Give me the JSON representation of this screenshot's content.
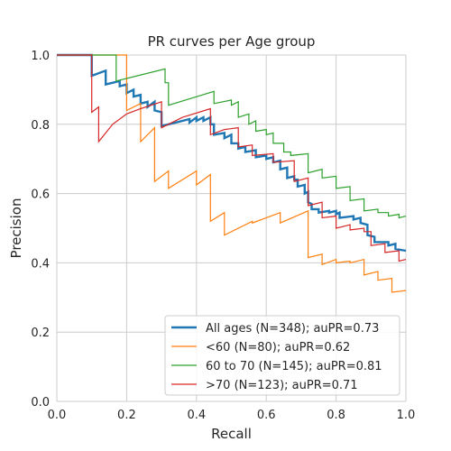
{
  "chart_data": {
    "type": "line",
    "title": "PR curves per Age group",
    "xlabel": "Recall",
    "ylabel": "Precision",
    "xlim": [
      0.0,
      1.0
    ],
    "ylim": [
      0.0,
      1.0
    ],
    "xticks": [
      "0.0",
      "0.2",
      "0.4",
      "0.6",
      "0.8",
      "1.0"
    ],
    "yticks": [
      "0.0",
      "0.2",
      "0.4",
      "0.6",
      "0.8",
      "1.0"
    ],
    "grid": true,
    "legend_position": "lower-right",
    "series": [
      {
        "name": "All ages (N=348); auPR=0.73",
        "color": "#1f77b4",
        "width": 2.4,
        "points": [
          [
            0.0,
            1.0
          ],
          [
            0.1,
            1.0
          ],
          [
            0.1,
            0.94
          ],
          [
            0.14,
            0.955
          ],
          [
            0.14,
            0.915
          ],
          [
            0.18,
            0.925
          ],
          [
            0.18,
            0.91
          ],
          [
            0.2,
            0.915
          ],
          [
            0.2,
            0.89
          ],
          [
            0.22,
            0.9
          ],
          [
            0.22,
            0.88
          ],
          [
            0.24,
            0.885
          ],
          [
            0.24,
            0.86
          ],
          [
            0.26,
            0.865
          ],
          [
            0.26,
            0.85
          ],
          [
            0.28,
            0.865
          ],
          [
            0.28,
            0.84
          ],
          [
            0.3,
            0.835
          ],
          [
            0.3,
            0.795
          ],
          [
            0.34,
            0.805
          ],
          [
            0.38,
            0.815
          ],
          [
            0.38,
            0.805
          ],
          [
            0.4,
            0.82
          ],
          [
            0.4,
            0.81
          ],
          [
            0.42,
            0.82
          ],
          [
            0.42,
            0.81
          ],
          [
            0.44,
            0.82
          ],
          [
            0.44,
            0.8
          ],
          [
            0.45,
            0.8
          ],
          [
            0.45,
            0.77
          ],
          [
            0.48,
            0.775
          ],
          [
            0.48,
            0.76
          ],
          [
            0.5,
            0.77
          ],
          [
            0.5,
            0.745
          ],
          [
            0.52,
            0.745
          ],
          [
            0.52,
            0.73
          ],
          [
            0.54,
            0.735
          ],
          [
            0.54,
            0.72
          ],
          [
            0.57,
            0.725
          ],
          [
            0.57,
            0.705
          ],
          [
            0.6,
            0.71
          ],
          [
            0.6,
            0.7
          ],
          [
            0.62,
            0.705
          ],
          [
            0.62,
            0.69
          ],
          [
            0.64,
            0.695
          ],
          [
            0.64,
            0.67
          ],
          [
            0.66,
            0.675
          ],
          [
            0.66,
            0.645
          ],
          [
            0.68,
            0.65
          ],
          [
            0.68,
            0.64
          ],
          [
            0.69,
            0.64
          ],
          [
            0.69,
            0.62
          ],
          [
            0.71,
            0.625
          ],
          [
            0.71,
            0.6
          ],
          [
            0.72,
            0.605
          ],
          [
            0.72,
            0.575
          ],
          [
            0.73,
            0.57
          ],
          [
            0.73,
            0.555
          ],
          [
            0.75,
            0.555
          ],
          [
            0.75,
            0.545
          ],
          [
            0.78,
            0.55
          ],
          [
            0.78,
            0.545
          ],
          [
            0.8,
            0.55
          ],
          [
            0.8,
            0.54
          ],
          [
            0.81,
            0.545
          ],
          [
            0.81,
            0.53
          ],
          [
            0.85,
            0.535
          ],
          [
            0.85,
            0.525
          ],
          [
            0.87,
            0.53
          ],
          [
            0.87,
            0.515
          ],
          [
            0.89,
            0.51
          ],
          [
            0.89,
            0.48
          ],
          [
            0.91,
            0.475
          ],
          [
            0.91,
            0.46
          ],
          [
            0.95,
            0.46
          ],
          [
            0.95,
            0.45
          ],
          [
            0.97,
            0.455
          ],
          [
            0.97,
            0.44
          ],
          [
            1.0,
            0.435
          ]
        ]
      },
      {
        "name": "<60 (N=80); auPR=0.62",
        "color": "#ff7f0e",
        "width": 1.2,
        "points": [
          [
            0.0,
            1.0
          ],
          [
            0.2,
            1.0
          ],
          [
            0.2,
            0.84
          ],
          [
            0.24,
            0.86
          ],
          [
            0.24,
            0.75
          ],
          [
            0.28,
            0.79
          ],
          [
            0.28,
            0.635
          ],
          [
            0.32,
            0.665
          ],
          [
            0.32,
            0.615
          ],
          [
            0.4,
            0.665
          ],
          [
            0.4,
            0.625
          ],
          [
            0.44,
            0.655
          ],
          [
            0.44,
            0.52
          ],
          [
            0.48,
            0.545
          ],
          [
            0.48,
            0.48
          ],
          [
            0.56,
            0.52
          ],
          [
            0.56,
            0.515
          ],
          [
            0.64,
            0.545
          ],
          [
            0.64,
            0.515
          ],
          [
            0.72,
            0.55
          ],
          [
            0.72,
            0.415
          ],
          [
            0.76,
            0.425
          ],
          [
            0.76,
            0.395
          ],
          [
            0.8,
            0.41
          ],
          [
            0.8,
            0.4
          ],
          [
            0.84,
            0.405
          ],
          [
            0.84,
            0.4
          ],
          [
            0.88,
            0.41
          ],
          [
            0.88,
            0.365
          ],
          [
            0.92,
            0.375
          ],
          [
            0.92,
            0.35
          ],
          [
            0.96,
            0.355
          ],
          [
            0.96,
            0.315
          ],
          [
            1.0,
            0.32
          ]
        ]
      },
      {
        "name": "60 to 70 (N=145); auPR=0.81",
        "color": "#2ca02c",
        "width": 1.2,
        "points": [
          [
            0.0,
            1.0
          ],
          [
            0.17,
            1.0
          ],
          [
            0.17,
            0.925
          ],
          [
            0.31,
            0.96
          ],
          [
            0.31,
            0.92
          ],
          [
            0.32,
            0.92
          ],
          [
            0.32,
            0.855
          ],
          [
            0.45,
            0.895
          ],
          [
            0.45,
            0.86
          ],
          [
            0.5,
            0.87
          ],
          [
            0.5,
            0.855
          ],
          [
            0.52,
            0.865
          ],
          [
            0.52,
            0.82
          ],
          [
            0.55,
            0.83
          ],
          [
            0.55,
            0.8
          ],
          [
            0.57,
            0.81
          ],
          [
            0.57,
            0.78
          ],
          [
            0.6,
            0.785
          ],
          [
            0.6,
            0.77
          ],
          [
            0.62,
            0.775
          ],
          [
            0.62,
            0.745
          ],
          [
            0.65,
            0.745
          ],
          [
            0.65,
            0.72
          ],
          [
            0.67,
            0.72
          ],
          [
            0.67,
            0.71
          ],
          [
            0.72,
            0.715
          ],
          [
            0.72,
            0.66
          ],
          [
            0.76,
            0.67
          ],
          [
            0.76,
            0.645
          ],
          [
            0.8,
            0.65
          ],
          [
            0.8,
            0.615
          ],
          [
            0.84,
            0.62
          ],
          [
            0.84,
            0.58
          ],
          [
            0.88,
            0.585
          ],
          [
            0.88,
            0.55
          ],
          [
            0.92,
            0.555
          ],
          [
            0.92,
            0.545
          ],
          [
            0.95,
            0.545
          ],
          [
            0.95,
            0.535
          ],
          [
            0.98,
            0.54
          ],
          [
            0.98,
            0.53
          ],
          [
            1.0,
            0.535
          ]
        ]
      },
      {
        "name": ">70 (N=123); auPR=0.71",
        "color": "#d62728",
        "width": 1.2,
        "points": [
          [
            0.0,
            1.0
          ],
          [
            0.1,
            1.0
          ],
          [
            0.1,
            0.835
          ],
          [
            0.12,
            0.85
          ],
          [
            0.12,
            0.75
          ],
          [
            0.16,
            0.8
          ],
          [
            0.2,
            0.83
          ],
          [
            0.24,
            0.845
          ],
          [
            0.3,
            0.865
          ],
          [
            0.3,
            0.79
          ],
          [
            0.36,
            0.82
          ],
          [
            0.44,
            0.845
          ],
          [
            0.44,
            0.77
          ],
          [
            0.48,
            0.785
          ],
          [
            0.52,
            0.79
          ],
          [
            0.52,
            0.735
          ],
          [
            0.56,
            0.74
          ],
          [
            0.56,
            0.71
          ],
          [
            0.62,
            0.715
          ],
          [
            0.62,
            0.69
          ],
          [
            0.68,
            0.695
          ],
          [
            0.68,
            0.635
          ],
          [
            0.72,
            0.645
          ],
          [
            0.72,
            0.565
          ],
          [
            0.76,
            0.575
          ],
          [
            0.76,
            0.53
          ],
          [
            0.8,
            0.535
          ],
          [
            0.8,
            0.5
          ],
          [
            0.84,
            0.51
          ],
          [
            0.84,
            0.495
          ],
          [
            0.88,
            0.5
          ],
          [
            0.88,
            0.49
          ],
          [
            0.9,
            0.49
          ],
          [
            0.9,
            0.45
          ],
          [
            0.94,
            0.455
          ],
          [
            0.94,
            0.43
          ],
          [
            0.98,
            0.435
          ],
          [
            0.98,
            0.405
          ],
          [
            1.0,
            0.41
          ]
        ]
      }
    ]
  }
}
